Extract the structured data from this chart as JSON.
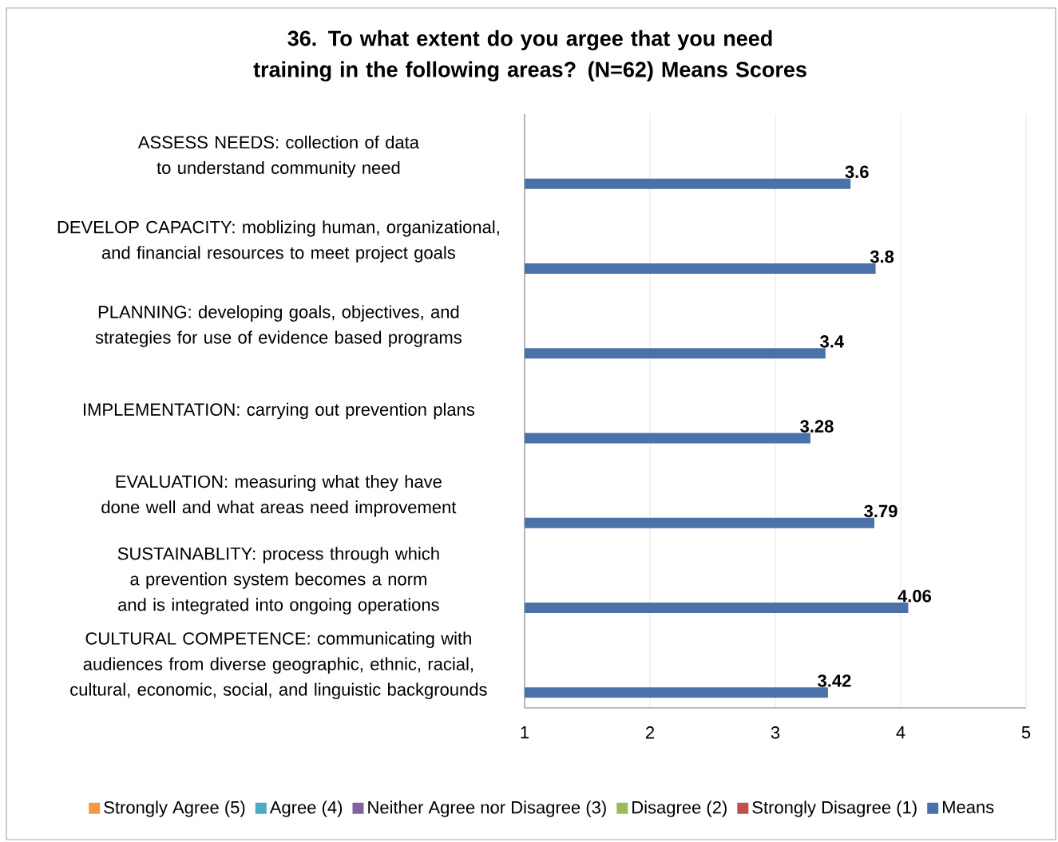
{
  "chart_data": {
    "type": "bar",
    "orientation": "horizontal",
    "title": "36. To what extent do you argee that you need training in the following areas?  (N=62) Means Scores",
    "categories": [
      "ASSESS NEEDS:  collection of data to understand community need",
      "DEVELOP CAPACITY:  moblizing human, organizational, and financial resources to meet project goals",
      "PLANNING:  developing goals, objectives, and strategies for use of evidence based programs",
      "IMPLEMENTATION:  carrying out prevention plans",
      "EVALUATION:  measuring what they have done well and what areas need improvement",
      "SUSTAINABLITY:  process through which a prevention system becomes a norm and is integrated into ongoing operations",
      "CULTURAL COMPETENCE:  communicating with audiences from diverse geographic, ethnic, racial, cultural, economic, social, and linguistic backgrounds"
    ],
    "series": [
      {
        "name": "Strongly Agree (5)",
        "color": "#f79646",
        "values": [
          null,
          null,
          null,
          null,
          null,
          null,
          null
        ]
      },
      {
        "name": "Agree (4)",
        "color": "#4bacc6",
        "values": [
          null,
          null,
          null,
          null,
          null,
          null,
          null
        ]
      },
      {
        "name": "Neither Agree nor Disagree (3)",
        "color": "#8064a2",
        "values": [
          null,
          null,
          null,
          null,
          null,
          null,
          null
        ]
      },
      {
        "name": "Disagree (2)",
        "color": "#9bbb59",
        "values": [
          null,
          null,
          null,
          null,
          null,
          null,
          null
        ]
      },
      {
        "name": "Strongly Disagree (1)",
        "color": "#c0504d",
        "values": [
          null,
          null,
          null,
          null,
          null,
          null,
          null
        ]
      },
      {
        "name": "Means",
        "color": "#4a72a8",
        "values": [
          3.6,
          3.8,
          3.4,
          3.28,
          3.79,
          4.06,
          3.42
        ]
      }
    ],
    "xlim": [
      1,
      5
    ],
    "xticks": [
      1,
      2,
      3,
      4,
      5
    ],
    "grid": "x",
    "legend": "bottom",
    "data_labels": true
  }
}
